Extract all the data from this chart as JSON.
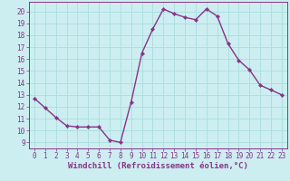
{
  "x": [
    0,
    1,
    2,
    3,
    4,
    5,
    6,
    7,
    8,
    9,
    10,
    11,
    12,
    13,
    14,
    15,
    16,
    17,
    18,
    19,
    20,
    21,
    22,
    23
  ],
  "y": [
    12.7,
    11.9,
    11.1,
    10.4,
    10.3,
    10.3,
    10.3,
    9.2,
    9.0,
    12.4,
    16.5,
    18.5,
    20.2,
    19.8,
    19.5,
    19.3,
    20.2,
    19.6,
    17.3,
    15.9,
    15.1,
    13.8,
    13.4,
    13.0
  ],
  "line_color": "#883388",
  "marker": "D",
  "markersize": 2.2,
  "linewidth": 1.0,
  "background_color": "#cceef0",
  "grid_color": "#aadddd",
  "xlabel": "Windchill (Refroidissement éolien,°C)",
  "xlabel_fontsize": 6.5,
  "tick_fontsize": 5.5,
  "xlim": [
    -0.5,
    23.5
  ],
  "ylim": [
    8.5,
    20.8
  ],
  "yticks": [
    9,
    10,
    11,
    12,
    13,
    14,
    15,
    16,
    17,
    18,
    19,
    20
  ],
  "xticks": [
    0,
    1,
    2,
    3,
    4,
    5,
    6,
    7,
    8,
    9,
    10,
    11,
    12,
    13,
    14,
    15,
    16,
    17,
    18,
    19,
    20,
    21,
    22,
    23
  ]
}
